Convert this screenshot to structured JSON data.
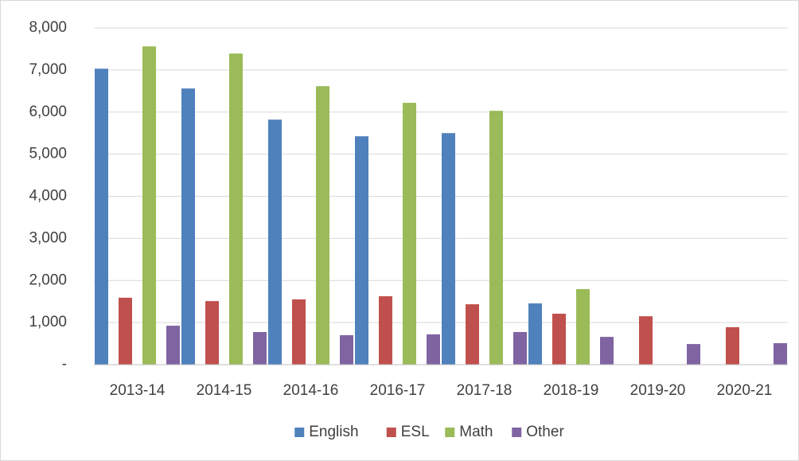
{
  "chart_data": {
    "type": "bar",
    "categories": [
      "2013-14",
      "2014-15",
      "2014-16",
      "2016-17",
      "2017-18",
      "2018-19",
      "2019-20",
      "2020-21"
    ],
    "series": [
      {
        "name": "English",
        "color": "#4f81bd",
        "values": [
          7030,
          6560,
          5820,
          5425,
          5500,
          1455,
          0,
          0
        ]
      },
      {
        "name": "ESL",
        "color": "#c0504d",
        "values": [
          1590,
          1510,
          1550,
          1625,
          1435,
          1210,
          1150,
          890
        ]
      },
      {
        "name": "Math",
        "color": "#9bbb59",
        "values": [
          7560,
          7390,
          6615,
          6220,
          6030,
          1795,
          0,
          0
        ]
      },
      {
        "name": "Other",
        "color": "#8064a2",
        "values": [
          925,
          775,
          700,
          720,
          775,
          660,
          490,
          510
        ]
      }
    ],
    "ylim": [
      0,
      8000
    ],
    "yticks": [
      {
        "value": 0,
        "label": "-"
      },
      {
        "value": 1000,
        "label": "1,000"
      },
      {
        "value": 2000,
        "label": "2,000"
      },
      {
        "value": 3000,
        "label": "3,000"
      },
      {
        "value": 4000,
        "label": "4,000"
      },
      {
        "value": 5000,
        "label": "5,000"
      },
      {
        "value": 6000,
        "label": "6,000"
      },
      {
        "value": 7000,
        "label": "7,000"
      },
      {
        "value": 8000,
        "label": "8,000"
      }
    ],
    "grid": true,
    "legend": "bottom"
  }
}
